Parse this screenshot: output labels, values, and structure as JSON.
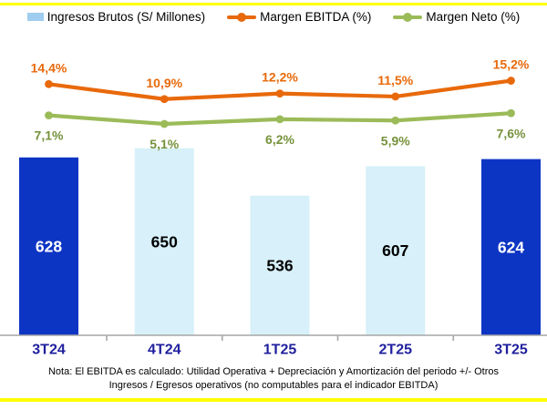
{
  "page": {
    "background_color": "#FFFFFF",
    "border_line_color": "#FFFF00"
  },
  "legend": {
    "items": [
      {
        "label": "Ingresos Brutos (S/ Millones)",
        "marker": "bar-swatch",
        "color": "#9FCDEF"
      },
      {
        "label": "Margen EBITDA (%)",
        "marker": "line-dot",
        "color": "#E8690B"
      },
      {
        "label": "Margen Neto (%)",
        "marker": "line-dot",
        "color": "#9BBB59"
      }
    ]
  },
  "chart_data": {
    "type": "combo",
    "categories": [
      "3T24",
      "4T24",
      "1T25",
      "2T25",
      "3T25"
    ],
    "category_label_color": "#1F1F9E",
    "series": [
      {
        "name": "Ingresos Brutos (S/ Millones)",
        "type": "bar",
        "values": [
          628,
          650,
          536,
          607,
          624
        ],
        "value_labels": [
          "628",
          "650",
          "536",
          "607",
          "624"
        ],
        "bar_colors": [
          "#0D35C4",
          "#D7F0F9",
          "#D7F0F9",
          "#D7F0F9",
          "#0D35C4"
        ],
        "value_label_colors": [
          "#FFFFFF",
          "#000000",
          "#000000",
          "#000000",
          "#FFFFFF"
        ]
      },
      {
        "name": "Margen EBITDA (%)",
        "type": "line",
        "values": [
          14.4,
          10.9,
          12.2,
          11.5,
          15.2
        ],
        "value_labels": [
          "14,4%",
          "10,9%",
          "12,2%",
          "11,5%",
          "15,2%"
        ],
        "line_color": "#E8690B",
        "label_color": "#E8690B"
      },
      {
        "name": "Margen Neto (%)",
        "type": "line",
        "values": [
          7.1,
          5.1,
          6.2,
          5.9,
          7.6
        ],
        "value_labels": [
          "7,1%",
          "5,1%",
          "6,2%",
          "5,9%",
          "7,6%"
        ],
        "line_color": "#9BBB59",
        "label_color": "#76923C"
      }
    ],
    "value_axis_visible": false,
    "gridlines": false,
    "legend_position": "top",
    "axis_line_color": "#A6A6A6"
  },
  "note": {
    "text": "Nota: El EBITDA es calculado: Utilidad Operativa  + Depreciación y Amortización del periodo +/- Otros Ingresos / Egresos operativos (no computables  para el indicador EBITDA)"
  }
}
